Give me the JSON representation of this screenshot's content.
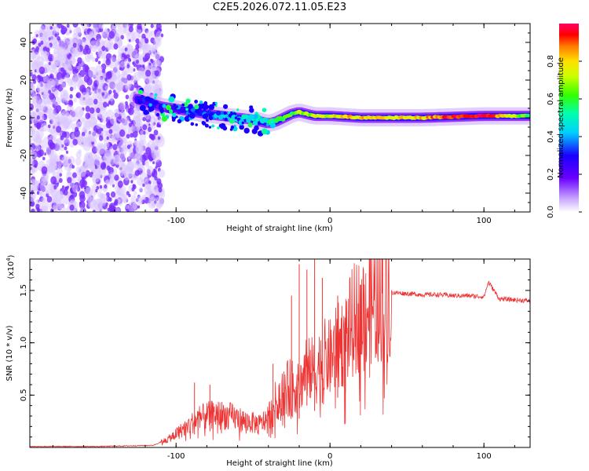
{
  "chart_data": [
    {
      "type": "heatmap",
      "title": "C2E5.2026.072.11.05.E23",
      "xlabel": "Height of straight line (km)",
      "ylabel": "Frequency (Hz)",
      "xlim": [
        -195,
        130
      ],
      "ylim": [
        -50,
        50
      ],
      "xticks": [
        -100,
        0,
        100
      ],
      "yticks": [
        -40,
        -20,
        0,
        20,
        40
      ],
      "colorbar": {
        "label": "Normalized spectral amplitude",
        "range": [
          0.0,
          1.0
        ],
        "ticks": [
          0.0,
          0.2,
          0.4,
          0.6,
          0.8
        ]
      },
      "signal_track": {
        "x": [
          -125,
          -110,
          -95,
          -80,
          -70,
          -60,
          -50,
          -40,
          -35,
          -25,
          -20,
          -10,
          0,
          10,
          20,
          40,
          60,
          80,
          100,
          130
        ],
        "freq": [
          10,
          6,
          4,
          2,
          1,
          0,
          -1,
          -3,
          -2,
          2,
          3,
          1,
          1,
          0.5,
          0,
          0,
          0,
          0.5,
          1,
          1
        ],
        "amplitude": [
          0.3,
          0.2,
          0.3,
          0.35,
          0.4,
          0.5,
          0.45,
          0.5,
          0.55,
          0.6,
          0.65,
          0.7,
          0.75,
          0.8,
          0.8,
          0.75,
          0.8,
          0.95,
          1.0,
          0.55
        ]
      },
      "noise_region_x": [
        -195,
        -115
      ]
    },
    {
      "type": "line",
      "xlabel": "Height of straight line (km)",
      "ylabel": "SNR (10 * v/v)",
      "yscale_label": "(x10",
      "yscale_exp": "4",
      "xlim": [
        -195,
        130
      ],
      "ylim": [
        0,
        1.8
      ],
      "xticks": [
        -100,
        0,
        100
      ],
      "yticks": [
        0.5,
        1.0,
        1.5
      ],
      "ytick_labels": [
        "0.5",
        "1.0",
        "1.5"
      ],
      "series": [
        {
          "name": "SNR",
          "color": "#ee3333",
          "x": [
            -195,
            -150,
            -115,
            -105,
            -95,
            -85,
            -75,
            -65,
            -55,
            -45,
            -40,
            -35,
            -30,
            -25,
            -20,
            -15,
            -10,
            -5,
            0,
            5,
            10,
            15,
            20,
            25,
            30,
            35,
            40,
            50,
            60,
            70,
            80,
            90,
            100,
            103,
            110,
            120,
            130
          ],
          "values": [
            0.01,
            0.01,
            0.02,
            0.08,
            0.18,
            0.28,
            0.32,
            0.3,
            0.25,
            0.22,
            0.3,
            0.45,
            0.55,
            0.6,
            0.55,
            0.8,
            0.7,
            0.85,
            0.85,
            0.95,
            1.05,
            1.2,
            1.3,
            1.35,
            1.42,
            1.47,
            1.48,
            1.47,
            1.46,
            1.46,
            1.45,
            1.45,
            1.44,
            1.58,
            1.42,
            1.41,
            1.4
          ]
        }
      ],
      "spikes": [
        {
          "x": -88,
          "value": 0.62
        },
        {
          "x": -78,
          "value": 0.6
        },
        {
          "x": -37,
          "value": 0.8
        },
        {
          "x": -25,
          "value": 1.45
        },
        {
          "x": -20,
          "value": 1.75
        },
        {
          "x": -15,
          "value": 1.7
        },
        {
          "x": -10,
          "value": 1.82
        },
        {
          "x": -5,
          "value": 1.62
        },
        {
          "x": 5,
          "value": 1.45
        },
        {
          "x": 10,
          "value": 1.2
        }
      ]
    }
  ]
}
